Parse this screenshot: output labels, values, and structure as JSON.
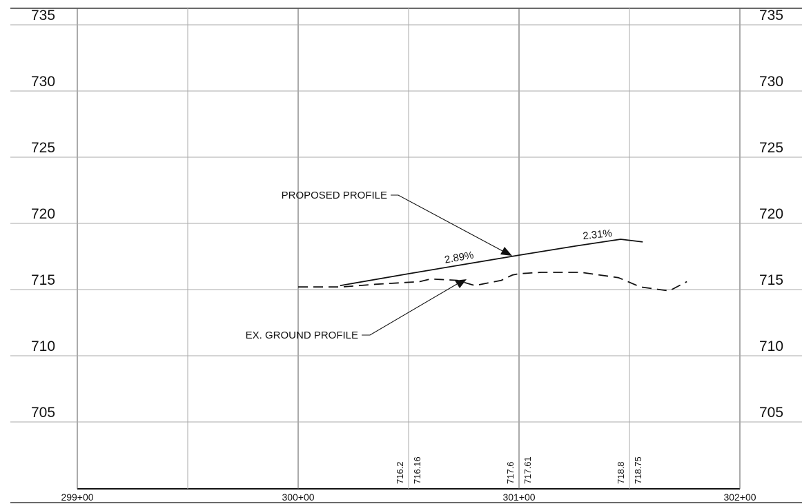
{
  "drawing": {
    "elevations": [
      735,
      730,
      725,
      720,
      715,
      710,
      705
    ],
    "stations": [
      "299+00",
      "300+00",
      "301+00",
      "302+00"
    ],
    "annotations": {
      "proposed_profile": "PROPOSED PROFILE",
      "existing_ground_profile": "EX. GROUND PROFILE"
    },
    "grades": {
      "first_segment": "2.89%",
      "second_segment": "2.31%"
    },
    "profile_elevation_labels": [
      {
        "station": 300.5,
        "existing": "716.2",
        "proposed": "716.16"
      },
      {
        "station": 301.0,
        "existing": "717.6",
        "proposed": "717.61"
      },
      {
        "station": 301.5,
        "existing": "718.8",
        "proposed": "718.75"
      }
    ],
    "proposed_profile_points": [
      {
        "station": 300.19,
        "elevation": 715.3
      },
      {
        "station": 300.5,
        "elevation": 716.2
      },
      {
        "station": 301.0,
        "elevation": 717.6
      },
      {
        "station": 301.26,
        "elevation": 718.3
      },
      {
        "station": 301.46,
        "elevation": 718.8
      },
      {
        "station": 301.56,
        "elevation": 718.6
      }
    ],
    "existing_ground_points": [
      {
        "station": 300.0,
        "elevation": 715.2
      },
      {
        "station": 300.2,
        "elevation": 715.2
      },
      {
        "station": 300.35,
        "elevation": 715.4
      },
      {
        "station": 300.55,
        "elevation": 715.6
      },
      {
        "station": 300.6,
        "elevation": 715.8
      },
      {
        "station": 300.72,
        "elevation": 715.7
      },
      {
        "station": 300.8,
        "elevation": 715.3
      },
      {
        "station": 300.92,
        "elevation": 715.7
      },
      {
        "station": 300.97,
        "elevation": 716.1
      },
      {
        "station": 301.0,
        "elevation": 716.2
      },
      {
        "station": 301.1,
        "elevation": 716.3
      },
      {
        "station": 301.28,
        "elevation": 716.3
      },
      {
        "station": 301.45,
        "elevation": 715.9
      },
      {
        "station": 301.55,
        "elevation": 715.2
      },
      {
        "station": 301.68,
        "elevation": 714.9
      },
      {
        "station": 301.76,
        "elevation": 715.6
      }
    ]
  }
}
